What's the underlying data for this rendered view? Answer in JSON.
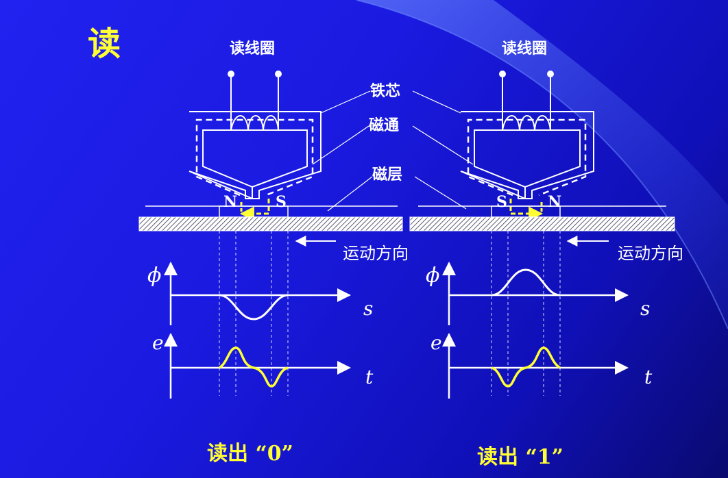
{
  "slide": {
    "title": "读",
    "colors": {
      "background": "#1a1ae0",
      "accent": "#ffff33",
      "line": "#ffffff"
    }
  },
  "left": {
    "coil_label": "读线圈",
    "pole_left": "N",
    "pole_right": "S",
    "motion_label": "运动方向",
    "phi_label": "ϕ",
    "s_label": "s",
    "e_label": "e",
    "t_label": "t",
    "result": "读出 “0”"
  },
  "right": {
    "coil_label": "读线圈",
    "pole_left": "S",
    "pole_right": "N",
    "motion_label": "运动方向",
    "phi_label": "ϕ",
    "s_label": "s",
    "e_label": "e",
    "t_label": "t",
    "result": "读出 “1”"
  },
  "callouts": {
    "core": "铁芯",
    "flux": "磁通",
    "layer": "磁层"
  }
}
